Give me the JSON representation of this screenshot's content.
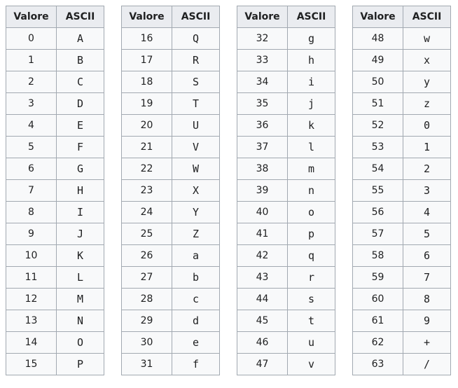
{
  "headers": {
    "value": "Valore",
    "ascii": "ASCII"
  },
  "tables": [
    {
      "rows": [
        {
          "v": "0",
          "c": "A"
        },
        {
          "v": "1",
          "c": "B"
        },
        {
          "v": "2",
          "c": "C"
        },
        {
          "v": "3",
          "c": "D"
        },
        {
          "v": "4",
          "c": "E"
        },
        {
          "v": "5",
          "c": "F"
        },
        {
          "v": "6",
          "c": "G"
        },
        {
          "v": "7",
          "c": "H"
        },
        {
          "v": "8",
          "c": "I"
        },
        {
          "v": "9",
          "c": "J"
        },
        {
          "v": "10",
          "c": "K"
        },
        {
          "v": "11",
          "c": "L"
        },
        {
          "v": "12",
          "c": "M"
        },
        {
          "v": "13",
          "c": "N"
        },
        {
          "v": "14",
          "c": "O"
        },
        {
          "v": "15",
          "c": "P"
        }
      ]
    },
    {
      "rows": [
        {
          "v": "16",
          "c": "Q"
        },
        {
          "v": "17",
          "c": "R"
        },
        {
          "v": "18",
          "c": "S"
        },
        {
          "v": "19",
          "c": "T"
        },
        {
          "v": "20",
          "c": "U"
        },
        {
          "v": "21",
          "c": "V"
        },
        {
          "v": "22",
          "c": "W"
        },
        {
          "v": "23",
          "c": "X"
        },
        {
          "v": "24",
          "c": "Y"
        },
        {
          "v": "25",
          "c": "Z"
        },
        {
          "v": "26",
          "c": "a"
        },
        {
          "v": "27",
          "c": "b"
        },
        {
          "v": "28",
          "c": "c"
        },
        {
          "v": "29",
          "c": "d"
        },
        {
          "v": "30",
          "c": "e"
        },
        {
          "v": "31",
          "c": "f"
        }
      ]
    },
    {
      "rows": [
        {
          "v": "32",
          "c": "g"
        },
        {
          "v": "33",
          "c": "h"
        },
        {
          "v": "34",
          "c": "i"
        },
        {
          "v": "35",
          "c": "j"
        },
        {
          "v": "36",
          "c": "k"
        },
        {
          "v": "37",
          "c": "l"
        },
        {
          "v": "38",
          "c": "m"
        },
        {
          "v": "39",
          "c": "n"
        },
        {
          "v": "40",
          "c": "o"
        },
        {
          "v": "41",
          "c": "p"
        },
        {
          "v": "42",
          "c": "q"
        },
        {
          "v": "43",
          "c": "r"
        },
        {
          "v": "44",
          "c": "s"
        },
        {
          "v": "45",
          "c": "t"
        },
        {
          "v": "46",
          "c": "u"
        },
        {
          "v": "47",
          "c": "v"
        }
      ]
    },
    {
      "rows": [
        {
          "v": "48",
          "c": "w"
        },
        {
          "v": "49",
          "c": "x"
        },
        {
          "v": "50",
          "c": "y"
        },
        {
          "v": "51",
          "c": "z"
        },
        {
          "v": "52",
          "c": "0"
        },
        {
          "v": "53",
          "c": "1"
        },
        {
          "v": "54",
          "c": "2"
        },
        {
          "v": "55",
          "c": "3"
        },
        {
          "v": "56",
          "c": "4"
        },
        {
          "v": "57",
          "c": "5"
        },
        {
          "v": "58",
          "c": "6"
        },
        {
          "v": "59",
          "c": "7"
        },
        {
          "v": "60",
          "c": "8"
        },
        {
          "v": "61",
          "c": "9"
        },
        {
          "v": "62",
          "c": "+"
        },
        {
          "v": "63",
          "c": "/"
        }
      ]
    }
  ],
  "colors": {
    "header_bg": "#eaecf0",
    "cell_bg": "#f8f9fa",
    "border": "#a2a9b1",
    "text": "#202122"
  }
}
